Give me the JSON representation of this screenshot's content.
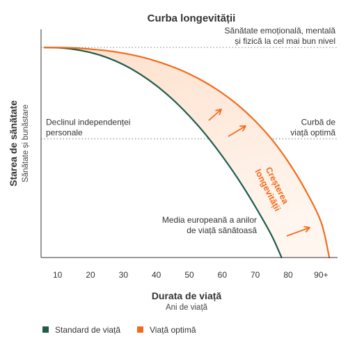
{
  "chart_data": {
    "type": "line",
    "title": "Curba longevității",
    "xlabel": "Durata de viață",
    "xlabel_sub": "Ani de viață",
    "ylabel": "Starea de sănătate",
    "ylabel_sub": "Sănătate și bunăstare",
    "xlim": [
      5,
      95
    ],
    "ylim": [
      0,
      100
    ],
    "x_ticks": [
      10,
      20,
      30,
      40,
      50,
      60,
      70,
      80,
      90
    ],
    "x_tick_labels": [
      "10",
      "20",
      "30",
      "40",
      "50",
      "60",
      "70",
      "80",
      "90+"
    ],
    "grid": false,
    "legend_position": "bottom-left",
    "reference_lines": [
      {
        "y": 92,
        "label_lines": [
          "Sănătate emoțională, mentală",
          "și fizică la cel mai bun nivel"
        ],
        "label_align": "right"
      },
      {
        "y": 52,
        "label_lines": [
          "Declinul independenței",
          "personale"
        ],
        "label_align": "left"
      },
      {
        "y": 52,
        "label_lines": [
          "Curbă de",
          "viață optimă"
        ],
        "label_align": "right"
      }
    ],
    "series": [
      {
        "name": "Standard de viață",
        "color": "#1e5c4a",
        "x": [
          6,
          10,
          15,
          20,
          25,
          30,
          35,
          40,
          45,
          50,
          55,
          60,
          65,
          70,
          75,
          78
        ],
        "y": [
          92,
          91.9,
          91.2,
          89.8,
          87.6,
          84.5,
          80.4,
          75.3,
          69.2,
          62,
          53.8,
          44.4,
          34,
          22.4,
          9.6,
          0
        ]
      },
      {
        "name": "Viață optimă",
        "color": "#f26b1d",
        "x": [
          6,
          10,
          15,
          20,
          25,
          30,
          35,
          40,
          45,
          50,
          55,
          60,
          65,
          70,
          75,
          80,
          85,
          90,
          92.5
        ],
        "y": [
          92,
          92,
          91.8,
          91.3,
          90.6,
          89.5,
          88,
          86,
          83.5,
          80.4,
          76.6,
          72,
          66.5,
          59.8,
          51.8,
          42,
          30.2,
          15.5,
          0
        ]
      }
    ],
    "annotations": [
      {
        "text_lines": [
          "Media europeană a anilor",
          "de viață sănătoasă"
        ],
        "x": 57,
        "y": 14
      },
      {
        "text_lines": [
          "Creșterea",
          "longevității"
        ],
        "color": "#f26b1d",
        "x": 79,
        "y": 40
      }
    ],
    "colors": {
      "standard": "#1e5c4a",
      "optimal": "#f26b1d",
      "fill_top": "#fde0cc",
      "fill_bottom": "#ffffff",
      "axis": "#333333",
      "text": "#333333",
      "dotted": "#999999"
    }
  }
}
